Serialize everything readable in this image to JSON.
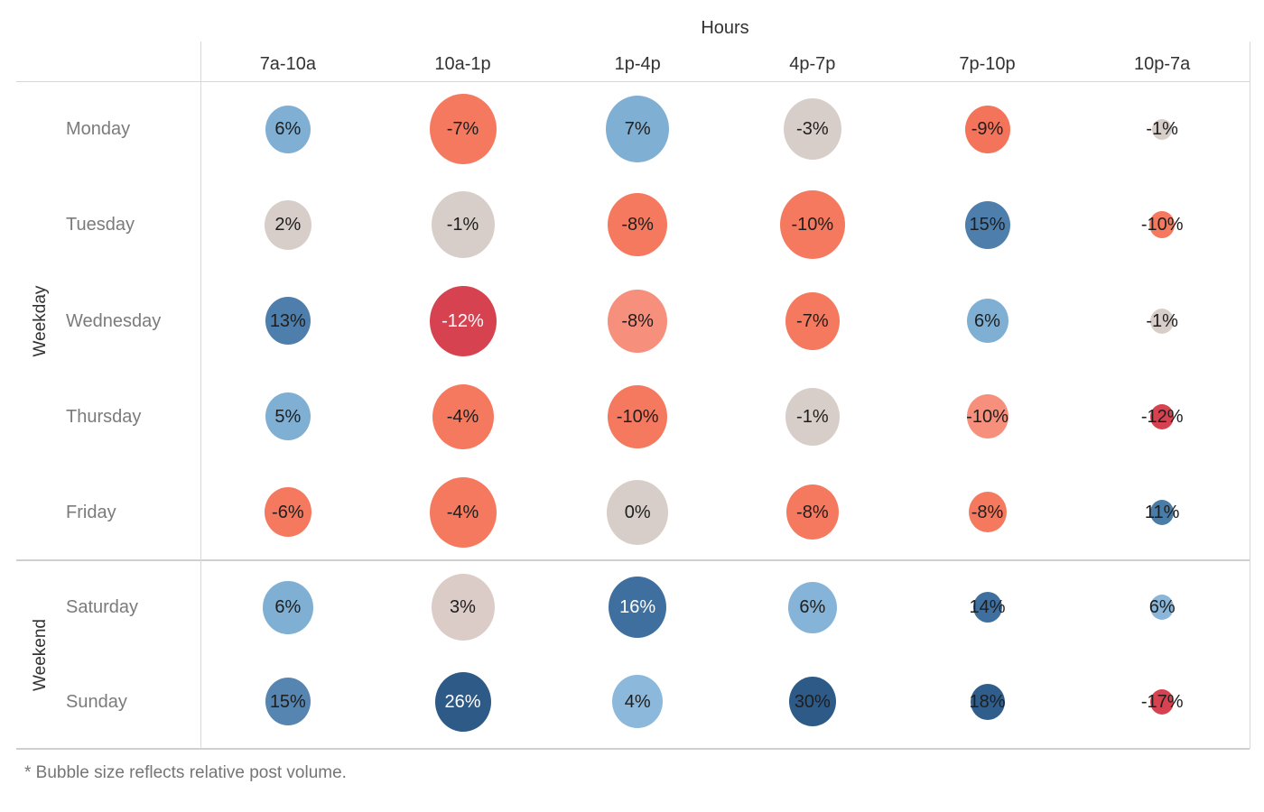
{
  "title": "Hours",
  "footnote": "* Bubble size reflects relative post volume.",
  "row_axis": {
    "groups": [
      {
        "label": "Weekday",
        "days": [
          "Monday",
          "Tuesday",
          "Wednesday",
          "Thursday",
          "Friday"
        ]
      },
      {
        "label": "Weekend",
        "days": [
          "Saturday",
          "Sunday"
        ]
      }
    ]
  },
  "chart_data": {
    "type": "scatter",
    "subtype": "bubble-matrix",
    "title": "Hours",
    "note": "* Bubble size reflects relative post volume.",
    "legend": "bubble size = relative post volume; color = blue positive, red negative, gray near zero",
    "columns": [
      "7a-10a",
      "10a-1p",
      "1p-4p",
      "4p-7p",
      "7p-10p",
      "10p-7a"
    ],
    "rows": [
      {
        "group": "Weekday",
        "day": "Monday",
        "cells": [
          {
            "label": "6%",
            "value": 6,
            "size": 50,
            "fill": "#7FAFD3",
            "text_color": "#1e1e1e"
          },
          {
            "label": "-7%",
            "value": -7,
            "size": 74,
            "fill": "#F4795E",
            "text_color": "#1e1e1e"
          },
          {
            "label": "7%",
            "value": 7,
            "size": 70,
            "fill": "#7FAFD3",
            "text_color": "#1e1e1e"
          },
          {
            "label": "-3%",
            "value": -3,
            "size": 64,
            "fill": "#D8CEC9",
            "text_color": "#1e1e1e"
          },
          {
            "label": "-9%",
            "value": -9,
            "size": 50,
            "fill": "#F4745B",
            "text_color": "#1e1e1e"
          },
          {
            "label": "-1%",
            "value": -1,
            "size": 22,
            "fill": "#D8CEC9",
            "text_color": "#1e1e1e"
          }
        ]
      },
      {
        "group": "Weekday",
        "day": "Tuesday",
        "cells": [
          {
            "label": "2%",
            "value": 2,
            "size": 52,
            "fill": "#D8CEC9",
            "text_color": "#1e1e1e"
          },
          {
            "label": "-1%",
            "value": -1,
            "size": 70,
            "fill": "#D8CEC9",
            "text_color": "#1e1e1e"
          },
          {
            "label": "-8%",
            "value": -8,
            "size": 66,
            "fill": "#F4795E",
            "text_color": "#1e1e1e"
          },
          {
            "label": "-10%",
            "value": -10,
            "size": 72,
            "fill": "#F4795E",
            "text_color": "#1e1e1e"
          },
          {
            "label": "15%",
            "value": 15,
            "size": 50,
            "fill": "#4E7EAC",
            "text_color": "#1e1e1e"
          },
          {
            "label": "-10%",
            "value": -10,
            "size": 28,
            "fill": "#F4795E",
            "text_color": "#1e1e1e"
          }
        ]
      },
      {
        "group": "Weekday",
        "day": "Wednesday",
        "cells": [
          {
            "label": "13%",
            "value": 13,
            "size": 50,
            "fill": "#4E7EAC",
            "text_color": "#1e1e1e"
          },
          {
            "label": "-12%",
            "value": -12,
            "size": 74,
            "fill": "#D64250",
            "text_color": "#ffffff"
          },
          {
            "label": "-8%",
            "value": -8,
            "size": 66,
            "fill": "#F68F7C",
            "text_color": "#1e1e1e"
          },
          {
            "label": "-7%",
            "value": -7,
            "size": 60,
            "fill": "#F4795E",
            "text_color": "#1e1e1e"
          },
          {
            "label": "6%",
            "value": 6,
            "size": 46,
            "fill": "#7FAFD3",
            "text_color": "#1e1e1e"
          },
          {
            "label": "-1%",
            "value": -1,
            "size": 26,
            "fill": "#D8CEC9",
            "text_color": "#1e1e1e"
          }
        ]
      },
      {
        "group": "Weekday",
        "day": "Thursday",
        "cells": [
          {
            "label": "5%",
            "value": 5,
            "size": 50,
            "fill": "#7FAFD3",
            "text_color": "#1e1e1e"
          },
          {
            "label": "-4%",
            "value": -4,
            "size": 68,
            "fill": "#F4795E",
            "text_color": "#1e1e1e"
          },
          {
            "label": "-10%",
            "value": -10,
            "size": 66,
            "fill": "#F4795E",
            "text_color": "#1e1e1e"
          },
          {
            "label": "-1%",
            "value": -1,
            "size": 60,
            "fill": "#D8CEC9",
            "text_color": "#1e1e1e"
          },
          {
            "label": "-10%",
            "value": -10,
            "size": 46,
            "fill": "#F68F7C",
            "text_color": "#1e1e1e"
          },
          {
            "label": "-12%",
            "value": -12,
            "size": 26,
            "fill": "#D64250",
            "text_color": "#1e1e1e"
          }
        ]
      },
      {
        "group": "Weekday",
        "day": "Friday",
        "cells": [
          {
            "label": "-6%",
            "value": -6,
            "size": 52,
            "fill": "#F4795E",
            "text_color": "#1e1e1e"
          },
          {
            "label": "-4%",
            "value": -4,
            "size": 74,
            "fill": "#F4795E",
            "text_color": "#1e1e1e"
          },
          {
            "label": "0%",
            "value": 0,
            "size": 68,
            "fill": "#D8CEC9",
            "text_color": "#1e1e1e"
          },
          {
            "label": "-8%",
            "value": -8,
            "size": 58,
            "fill": "#F4795E",
            "text_color": "#1e1e1e"
          },
          {
            "label": "-8%",
            "value": -8,
            "size": 42,
            "fill": "#F4795E",
            "text_color": "#1e1e1e"
          },
          {
            "label": "11%",
            "value": 11,
            "size": 26,
            "fill": "#4A7CA8",
            "text_color": "#1e1e1e"
          }
        ]
      },
      {
        "group": "Weekend",
        "day": "Saturday",
        "cells": [
          {
            "label": "6%",
            "value": 6,
            "size": 56,
            "fill": "#7FAFD3",
            "text_color": "#1e1e1e"
          },
          {
            "label": "3%",
            "value": 3,
            "size": 70,
            "fill": "#DCCCC7",
            "text_color": "#1e1e1e"
          },
          {
            "label": "16%",
            "value": 16,
            "size": 64,
            "fill": "#3F6F9E",
            "text_color": "#ffffff"
          },
          {
            "label": "6%",
            "value": 6,
            "size": 54,
            "fill": "#85B4D8",
            "text_color": "#1e1e1e"
          },
          {
            "label": "14%",
            "value": 14,
            "size": 32,
            "fill": "#3F6F9E",
            "text_color": "#1e1e1e"
          },
          {
            "label": "6%",
            "value": 6,
            "size": 26,
            "fill": "#8AB6D9",
            "text_color": "#1e1e1e"
          }
        ]
      },
      {
        "group": "Weekend",
        "day": "Sunday",
        "cells": [
          {
            "label": "15%",
            "value": 15,
            "size": 50,
            "fill": "#5585B0",
            "text_color": "#1e1e1e"
          },
          {
            "label": "26%",
            "value": 26,
            "size": 62,
            "fill": "#2E5A88",
            "text_color": "#ffffff"
          },
          {
            "label": "4%",
            "value": 4,
            "size": 56,
            "fill": "#8CB8DB",
            "text_color": "#1e1e1e"
          },
          {
            "label": "30%",
            "value": 30,
            "size": 52,
            "fill": "#2E5A88",
            "text_color": "#1e1e1e"
          },
          {
            "label": "18%",
            "value": 18,
            "size": 38,
            "fill": "#305E8C",
            "text_color": "#1e1e1e"
          },
          {
            "label": "-17%",
            "value": -17,
            "size": 26,
            "fill": "#D64250",
            "text_color": "#1e1e1e"
          }
        ]
      }
    ]
  }
}
